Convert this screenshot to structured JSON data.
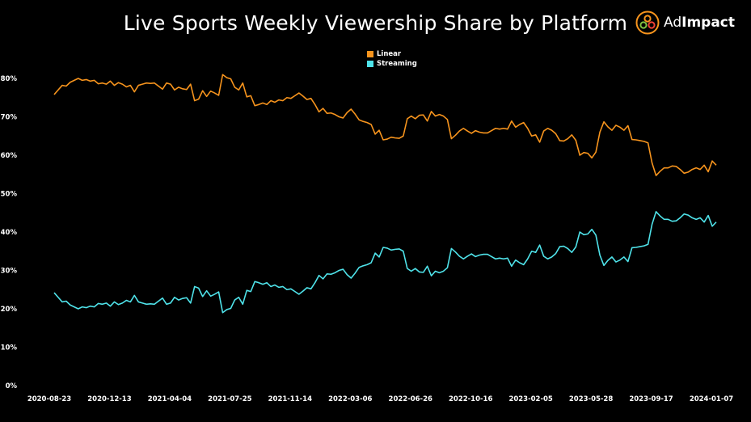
{
  "header": {
    "title": "Live Sports Weekly Viewership Share by Platform",
    "logo_prefix": "Ad",
    "logo_suffix": "Impact",
    "logo_icon": "adimpact-circles-icon"
  },
  "colors": {
    "background": "#000000",
    "linear": "#F7941D",
    "streaming": "#4FE3EA",
    "text": "#FFFFFF"
  },
  "chart_data": {
    "type": "line",
    "title": "Live Sports Weekly Viewership Share by Platform",
    "xlabel": "",
    "ylabel": "",
    "ylim": [
      0,
      0.85
    ],
    "y_ticks": [
      0,
      0.1,
      0.2,
      0.3,
      0.4,
      0.5,
      0.6,
      0.7,
      0.8
    ],
    "y_tick_labels": [
      "0%",
      "10%",
      "20%",
      "30%",
      "40%",
      "50%",
      "60%",
      "70%",
      "80%"
    ],
    "x_start": "2020-08-23",
    "x_end": "2024-01-07",
    "x_tick_labels": [
      "2020-08-23",
      "2020-12-13",
      "2021-04-04",
      "2021-07-25",
      "2021-11-14",
      "2022-03-06",
      "2022-06-26",
      "2022-10-16",
      "2023-02-05",
      "2023-05-28",
      "2023-09-17",
      "2024-01-07"
    ],
    "grid": false,
    "legend_position": "top-center",
    "series": [
      {
        "name": "Linear",
        "values": [
          0.758,
          0.77,
          0.782,
          0.78,
          0.79,
          0.795,
          0.8,
          0.795,
          0.797,
          0.793,
          0.795,
          0.786,
          0.788,
          0.785,
          0.793,
          0.782,
          0.789,
          0.785,
          0.778,
          0.782,
          0.765,
          0.782,
          0.785,
          0.788,
          0.787,
          0.788,
          0.78,
          0.772,
          0.788,
          0.785,
          0.77,
          0.777,
          0.773,
          0.771,
          0.785,
          0.742,
          0.746,
          0.768,
          0.753,
          0.767,
          0.762,
          0.756,
          0.81,
          0.802,
          0.799,
          0.777,
          0.77,
          0.788,
          0.752,
          0.755,
          0.729,
          0.732,
          0.736,
          0.732,
          0.742,
          0.738,
          0.744,
          0.742,
          0.75,
          0.748,
          0.755,
          0.762,
          0.754,
          0.745,
          0.748,
          0.732,
          0.713,
          0.722,
          0.709,
          0.71,
          0.706,
          0.7,
          0.697,
          0.711,
          0.72,
          0.707,
          0.692,
          0.688,
          0.685,
          0.68,
          0.655,
          0.665,
          0.64,
          0.642,
          0.647,
          0.645,
          0.644,
          0.65,
          0.695,
          0.702,
          0.695,
          0.704,
          0.705,
          0.689,
          0.714,
          0.702,
          0.706,
          0.702,
          0.693,
          0.643,
          0.652,
          0.663,
          0.67,
          0.663,
          0.657,
          0.664,
          0.66,
          0.658,
          0.658,
          0.664,
          0.67,
          0.668,
          0.67,
          0.668,
          0.689,
          0.673,
          0.68,
          0.685,
          0.67,
          0.65,
          0.653,
          0.634,
          0.663,
          0.67,
          0.665,
          0.656,
          0.638,
          0.637,
          0.643,
          0.653,
          0.639,
          0.6,
          0.607,
          0.605,
          0.593,
          0.608,
          0.66,
          0.687,
          0.674,
          0.665,
          0.678,
          0.673,
          0.665,
          0.677,
          0.641,
          0.64,
          0.638,
          0.636,
          0.632,
          0.58,
          0.547,
          0.558,
          0.567,
          0.567,
          0.572,
          0.571,
          0.563,
          0.553,
          0.556,
          0.563,
          0.567,
          0.563,
          0.574,
          0.557,
          0.585,
          0.574
        ]
      },
      {
        "name": "Streaming",
        "values": [
          0.242,
          0.23,
          0.218,
          0.22,
          0.21,
          0.205,
          0.2,
          0.205,
          0.203,
          0.207,
          0.205,
          0.214,
          0.212,
          0.215,
          0.207,
          0.218,
          0.211,
          0.215,
          0.222,
          0.218,
          0.235,
          0.218,
          0.215,
          0.212,
          0.213,
          0.212,
          0.22,
          0.228,
          0.212,
          0.215,
          0.23,
          0.223,
          0.227,
          0.229,
          0.215,
          0.258,
          0.254,
          0.232,
          0.247,
          0.233,
          0.238,
          0.244,
          0.19,
          0.198,
          0.201,
          0.223,
          0.23,
          0.212,
          0.248,
          0.245,
          0.271,
          0.268,
          0.264,
          0.268,
          0.258,
          0.262,
          0.256,
          0.258,
          0.25,
          0.252,
          0.245,
          0.238,
          0.246,
          0.255,
          0.252,
          0.268,
          0.287,
          0.278,
          0.291,
          0.29,
          0.294,
          0.3,
          0.303,
          0.289,
          0.28,
          0.293,
          0.308,
          0.312,
          0.315,
          0.32,
          0.345,
          0.335,
          0.36,
          0.358,
          0.353,
          0.355,
          0.356,
          0.35,
          0.305,
          0.298,
          0.305,
          0.296,
          0.295,
          0.311,
          0.286,
          0.298,
          0.294,
          0.298,
          0.307,
          0.357,
          0.348,
          0.337,
          0.33,
          0.337,
          0.343,
          0.336,
          0.34,
          0.342,
          0.342,
          0.336,
          0.33,
          0.332,
          0.33,
          0.332,
          0.311,
          0.327,
          0.32,
          0.315,
          0.33,
          0.35,
          0.347,
          0.366,
          0.337,
          0.33,
          0.335,
          0.344,
          0.362,
          0.363,
          0.357,
          0.347,
          0.361,
          0.4,
          0.393,
          0.395,
          0.407,
          0.392,
          0.34,
          0.313,
          0.326,
          0.335,
          0.322,
          0.327,
          0.335,
          0.323,
          0.359,
          0.36,
          0.362,
          0.364,
          0.368,
          0.42,
          0.453,
          0.442,
          0.433,
          0.433,
          0.428,
          0.429,
          0.437,
          0.447,
          0.444,
          0.437,
          0.433,
          0.437,
          0.426,
          0.443,
          0.415,
          0.426
        ]
      }
    ]
  }
}
